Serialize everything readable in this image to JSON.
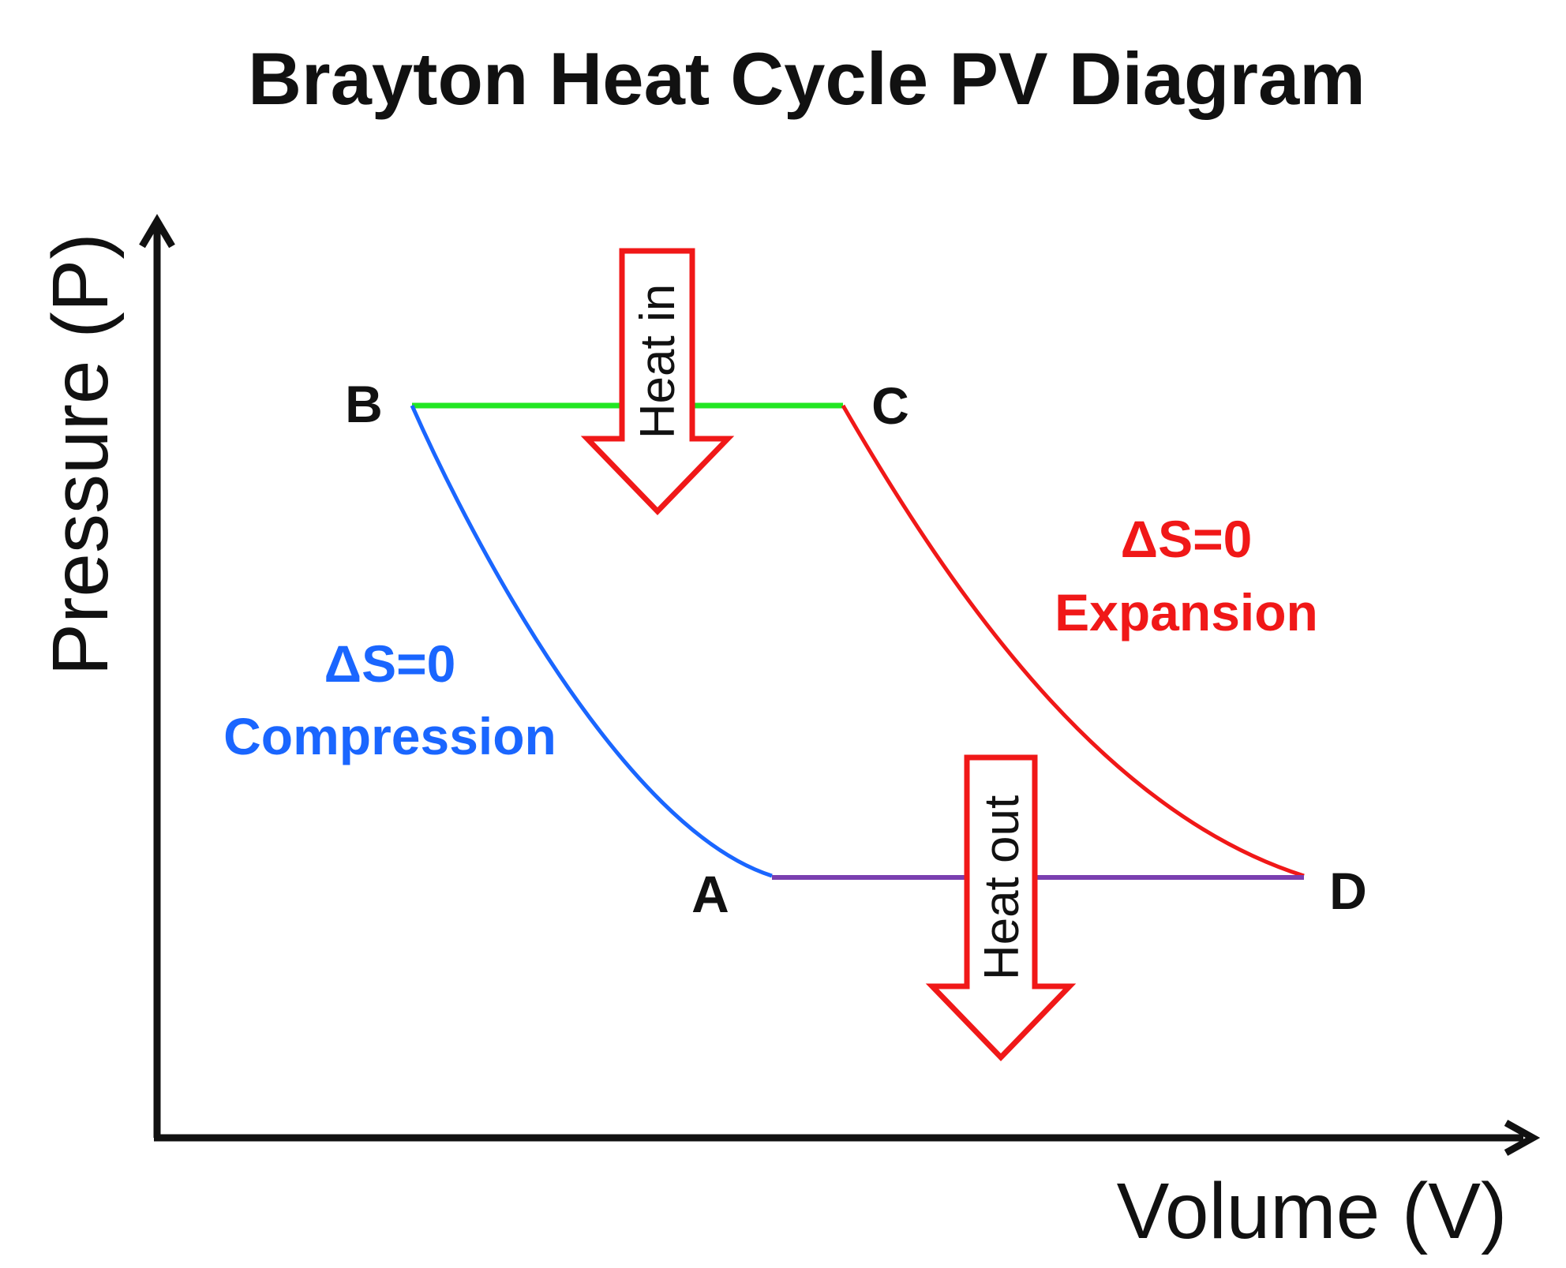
{
  "title": "Brayton Heat Cycle PV Diagram",
  "axes": {
    "y_label": "Pressure (P)",
    "x_label": "Volume (V)"
  },
  "points": {
    "A": "A",
    "B": "B",
    "C": "C",
    "D": "D"
  },
  "processes": {
    "compression": {
      "delta": "ΔS=0",
      "name": "Compression",
      "color": "#1a66ff",
      "path": "A to B"
    },
    "heat_addition": {
      "color": "#22e622",
      "path": "B to C"
    },
    "expansion": {
      "delta": "ΔS=0",
      "name": "Expansion",
      "color": "#f01818",
      "path": "C to D"
    },
    "heat_rejection": {
      "color": "#7a3fb0",
      "path": "D to A"
    }
  },
  "arrows": {
    "heat_in": "Heat in",
    "heat_out": "Heat out",
    "color": "#f01818"
  }
}
